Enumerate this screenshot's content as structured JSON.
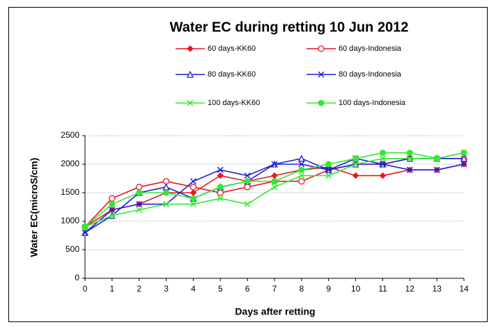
{
  "chart_data": {
    "type": "line",
    "title": "Water EC during retting 10 Jun 2012",
    "x_label": "Days after retting",
    "y_label": "Water EC(microS/cm)",
    "x": [
      0,
      1,
      2,
      3,
      4,
      5,
      6,
      7,
      8,
      9,
      10,
      11,
      12,
      13,
      14
    ],
    "xlim": [
      0,
      14
    ],
    "xticks": [
      0,
      1,
      2,
      3,
      4,
      5,
      6,
      7,
      8,
      9,
      10,
      11,
      12,
      13,
      14
    ],
    "ylim": [
      0,
      2500
    ],
    "yticks": [
      0,
      500,
      1000,
      1500,
      2000,
      2500
    ],
    "grid": true,
    "series": [
      {
        "name": "60 days-KK60",
        "color": "#e8161b",
        "marker": "diamond",
        "values": [
          900,
          1200,
          1300,
          1500,
          1500,
          1800,
          1700,
          1800,
          1900,
          1950,
          1800,
          1800,
          1900,
          1900,
          2000
        ]
      },
      {
        "name": "60 days-Indonesia",
        "color": "#e8161b",
        "marker": "open-circle",
        "values": [
          900,
          1400,
          1600,
          1700,
          1600,
          1500,
          1600,
          1700,
          1700,
          1900,
          2000,
          2000,
          2100,
          2100,
          2100
        ]
      },
      {
        "name": "80 days-KK60",
        "color": "#1f1fd0",
        "marker": "open-triangle",
        "values": [
          800,
          1100,
          1500,
          1600,
          1400,
          1600,
          1700,
          2000,
          2100,
          1900,
          2000,
          2000,
          2100,
          2100,
          2100
        ]
      },
      {
        "name": "80 days-Indonesia",
        "color": "#1f1fd0",
        "marker": "x",
        "values": [
          800,
          1200,
          1300,
          1300,
          1700,
          1900,
          1800,
          2000,
          2000,
          1900,
          2100,
          2000,
          1900,
          1900,
          2000
        ]
      },
      {
        "name": "100 days-KK60",
        "color": "#33e833",
        "marker": "x",
        "values": [
          900,
          1100,
          1200,
          1300,
          1300,
          1400,
          1300,
          1600,
          1800,
          1800,
          2000,
          2100,
          2100,
          2100,
          2200
        ]
      },
      {
        "name": "100 days-Indonesia",
        "color": "#33e833",
        "marker": "circle",
        "values": [
          900,
          1300,
          1500,
          1500,
          1400,
          1600,
          1700,
          1700,
          1900,
          2000,
          2100,
          2200,
          2200,
          2100,
          2200
        ]
      }
    ]
  }
}
